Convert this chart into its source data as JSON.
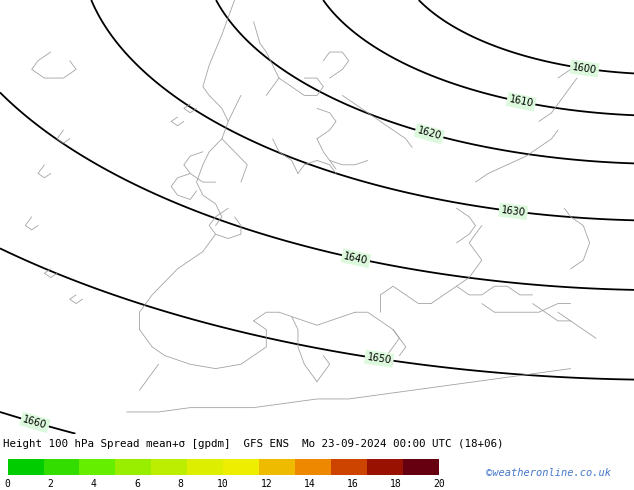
{
  "title": "Height 100 hPa Spread mean+σ [gpdm]  GFS ENS  Mo 23-09-2024 00:00 UTC (18+06)",
  "colorbar_label_values": [
    0,
    2,
    4,
    6,
    8,
    10,
    12,
    14,
    16,
    18,
    20
  ],
  "colorbar_colors": [
    "#00cc00",
    "#33dd00",
    "#66ee00",
    "#99ee00",
    "#bbee00",
    "#ddee00",
    "#eeee00",
    "#eebb00",
    "#ee8800",
    "#cc4400",
    "#991100",
    "#660011"
  ],
  "map_bg_color": "#00dd00",
  "title_color": "#000000",
  "title_fontsize": 8.0,
  "watermark": "©weatheronline.co.uk",
  "watermark_color": "#4477cc",
  "fig_bg_color": "#ffffff",
  "contour_color": "#000000",
  "coast_color": "#aaaaaa",
  "label_bg_color": "#ccffcc"
}
